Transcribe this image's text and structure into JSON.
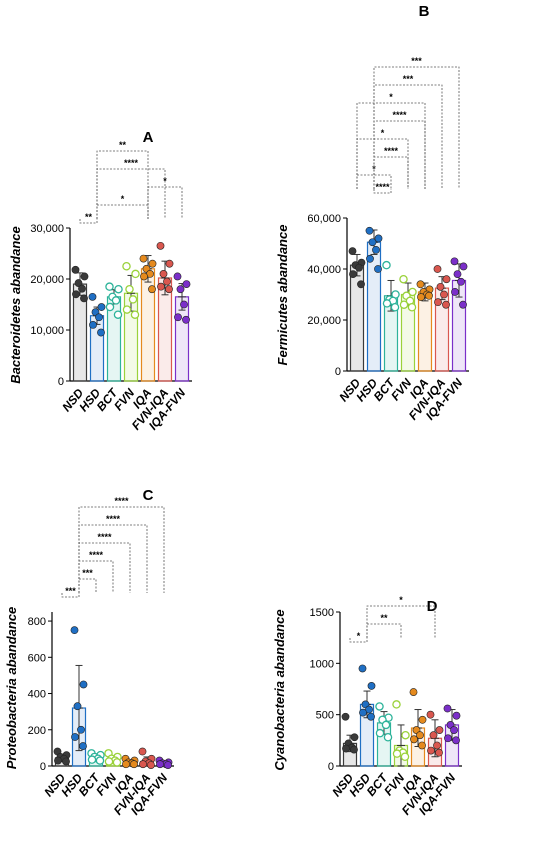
{
  "categories": [
    "NSD",
    "HSD",
    "BCT",
    "FVN",
    "IQA",
    "FVN-IQA",
    "IQA-FVN"
  ],
  "colors": [
    "#3a3a3a",
    "#1f6fc4",
    "#2db39a",
    "#9ad23a",
    "#e58a1e",
    "#d9574f",
    "#7b2fc9"
  ],
  "chart_data": [
    {
      "type": "bar",
      "panel": "A",
      "ylabel": "Bacteroidetes abandance",
      "ylim": [
        0,
        30000
      ],
      "yticks": [
        0,
        10000,
        20000,
        30000
      ],
      "ytick_labels": [
        "0",
        "10,000",
        "20,000",
        "30,000"
      ],
      "categories": [
        "NSD",
        "HSD",
        "BCT",
        "FVN",
        "IQA",
        "FVN-IQA",
        "IQA-FVN"
      ],
      "values": [
        19000,
        12800,
        16500,
        17200,
        22000,
        20200,
        16500
      ],
      "errors": [
        2200,
        1700,
        1400,
        3500,
        2600,
        3300,
        2600
      ],
      "points": [
        [
          21800,
          20500,
          19200,
          18100,
          17000,
          16200
        ],
        [
          16500,
          14500,
          13500,
          12500,
          11000,
          9500
        ],
        [
          18500,
          18000,
          16500,
          15800,
          14500,
          13000
        ],
        [
          22500,
          21000,
          18000,
          16000,
          14000,
          13000
        ],
        [
          24000,
          23000,
          22000,
          21000,
          20500,
          18000
        ],
        [
          26500,
          23000,
          21000,
          19500,
          18500,
          18000
        ],
        [
          20500,
          19000,
          18000,
          15000,
          12500,
          12000
        ]
      ],
      "comparisons": [
        {
          "from": 0,
          "to": 1,
          "label": "**"
        },
        {
          "from": 1,
          "to": 4,
          "label": "*"
        },
        {
          "from": 4,
          "to": 6,
          "label": "*"
        },
        {
          "from": 1,
          "to": 5,
          "label": "****"
        },
        {
          "from": 1,
          "to": 4,
          "label": "**"
        }
      ]
    },
    {
      "type": "bar",
      "panel": "B",
      "ylabel": "Fermicutes abandance",
      "ylim": [
        0,
        60000
      ],
      "yticks": [
        0,
        20000,
        40000,
        60000
      ],
      "ytick_labels": [
        "0",
        "20,000",
        "40,000",
        "60,000"
      ],
      "categories": [
        "NSD",
        "HSD",
        "BCT",
        "FVN",
        "IQA",
        "FVN-IQA",
        "IQA-FVN"
      ],
      "values": [
        41500,
        50500,
        29500,
        30000,
        31000,
        32500,
        35500
      ],
      "errors": [
        4200,
        4800,
        6000,
        4500,
        3500,
        4500,
        6500
      ],
      "points": [
        [
          47000,
          42500,
          41500,
          40500,
          38000,
          34000
        ],
        [
          55000,
          52000,
          50500,
          47500,
          44000,
          40000
        ],
        [
          41500,
          30000,
          28000,
          27500,
          26500,
          25000
        ],
        [
          36000,
          31000,
          29500,
          27500,
          26000,
          25000
        ],
        [
          34000,
          32000,
          31000,
          30000,
          29000,
          29500
        ],
        [
          40000,
          36000,
          33000,
          30000,
          27000,
          26000
        ],
        [
          43000,
          41000,
          38000,
          35000,
          31000,
          26000
        ]
      ],
      "comparisons": [
        {
          "from": 1,
          "to": 2,
          "label": "****"
        },
        {
          "from": 0,
          "to": 2,
          "label": "*"
        },
        {
          "from": 1,
          "to": 3,
          "label": "****"
        },
        {
          "from": 0,
          "to": 3,
          "label": "*"
        },
        {
          "from": 1,
          "to": 4,
          "label": "****"
        },
        {
          "from": 0,
          "to": 4,
          "label": "*"
        },
        {
          "from": 1,
          "to": 5,
          "label": "***"
        },
        {
          "from": 1,
          "to": 6,
          "label": "***"
        }
      ]
    },
    {
      "type": "bar",
      "panel": "C",
      "ylabel": "Proteobacteria abandance",
      "ylim": [
        0,
        850
      ],
      "yticks": [
        0,
        200,
        400,
        600,
        800
      ],
      "ytick_labels": [
        "0",
        "200",
        "400",
        "600",
        "800"
      ],
      "categories": [
        "NSD",
        "HSD",
        "BCT",
        "FVN",
        "IQA",
        "FVN-IQA",
        "IQA-FVN"
      ],
      "values": [
        45,
        320,
        45,
        35,
        20,
        25,
        15
      ],
      "errors": [
        20,
        235,
        20,
        20,
        12,
        25,
        10
      ],
      "points": [
        [
          80,
          60,
          50,
          40,
          30,
          25
        ],
        [
          750,
          450,
          330,
          200,
          160,
          110
        ],
        [
          70,
          60,
          50,
          40,
          35,
          30
        ],
        [
          70,
          50,
          40,
          30,
          25,
          20
        ],
        [
          40,
          30,
          20,
          15,
          10,
          10
        ],
        [
          80,
          40,
          25,
          15,
          10,
          5
        ],
        [
          30,
          20,
          15,
          10,
          10,
          5
        ]
      ],
      "comparisons": [
        {
          "from": 0,
          "to": 1,
          "label": "***"
        },
        {
          "from": 1,
          "to": 2,
          "label": "***"
        },
        {
          "from": 1,
          "to": 3,
          "label": "****"
        },
        {
          "from": 1,
          "to": 4,
          "label": "****"
        },
        {
          "from": 1,
          "to": 5,
          "label": "****"
        },
        {
          "from": 1,
          "to": 6,
          "label": "****"
        }
      ]
    },
    {
      "type": "bar",
      "panel": "D",
      "ylabel": "Cyanobacteria abandance",
      "ylim": [
        0,
        1500
      ],
      "yticks": [
        0,
        500,
        1000,
        1500
      ],
      "ytick_labels": [
        "0",
        "500",
        "1000",
        "1500"
      ],
      "categories": [
        "NSD",
        "HSD",
        "BCT",
        "FVN",
        "IQA",
        "FVN-IQA",
        "IQA-FVN"
      ],
      "values": [
        220,
        600,
        420,
        200,
        370,
        270,
        400
      ],
      "errors": [
        80,
        130,
        110,
        200,
        180,
        180,
        150
      ],
      "points": [
        [
          480,
          280,
          220,
          180,
          170,
          160
        ],
        [
          950,
          780,
          600,
          550,
          520,
          480
        ],
        [
          580,
          470,
          450,
          400,
          320,
          280
        ],
        [
          600,
          300,
          150,
          130,
          120,
          90
        ],
        [
          720,
          450,
          350,
          300,
          260,
          200
        ],
        [
          500,
          350,
          300,
          200,
          150,
          130
        ],
        [
          560,
          490,
          400,
          350,
          270,
          250
        ]
      ],
      "comparisons": [
        {
          "from": 0,
          "to": 1,
          "label": "*"
        },
        {
          "from": 1,
          "to": 3,
          "label": "**"
        },
        {
          "from": 1,
          "to": 5,
          "label": "*"
        }
      ]
    }
  ]
}
